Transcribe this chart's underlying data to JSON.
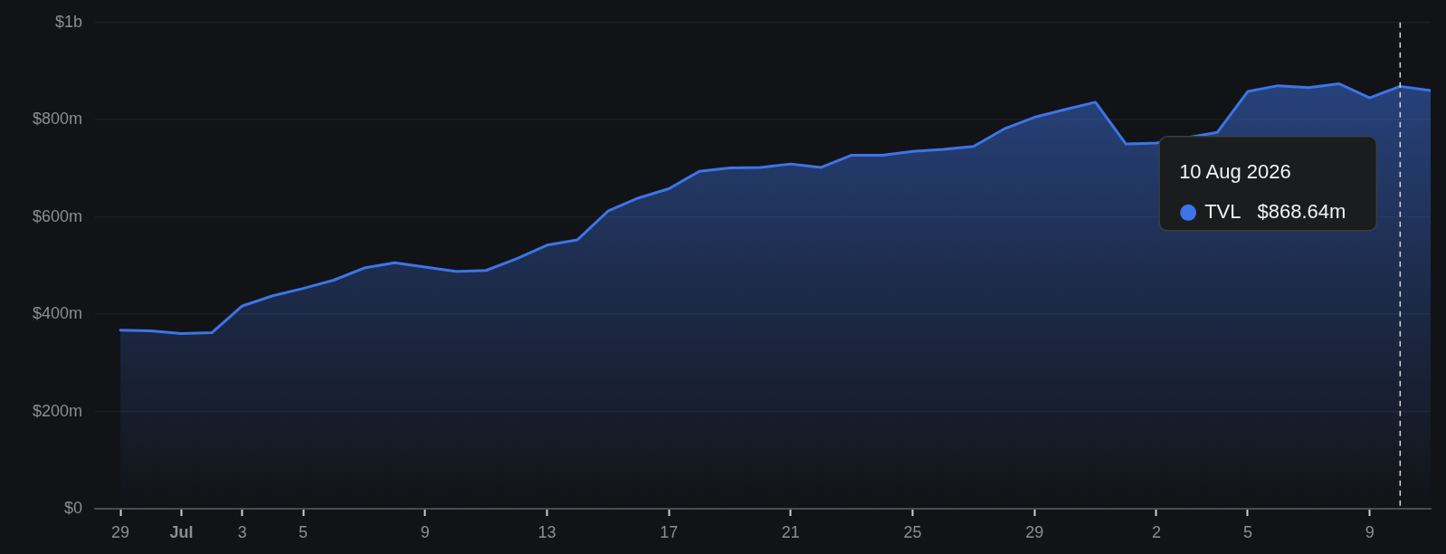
{
  "chart_data": {
    "type": "area",
    "x": [
      "2026-06-29",
      "2026-06-30",
      "2026-07-01",
      "2026-07-02",
      "2026-07-03",
      "2026-07-04",
      "2026-07-05",
      "2026-07-06",
      "2026-07-07",
      "2026-07-08",
      "2026-07-09",
      "2026-07-10",
      "2026-07-11",
      "2026-07-12",
      "2026-07-13",
      "2026-07-14",
      "2026-07-15",
      "2026-07-16",
      "2026-07-17",
      "2026-07-18",
      "2026-07-19",
      "2026-07-20",
      "2026-07-21",
      "2026-07-22",
      "2026-07-23",
      "2026-07-24",
      "2026-07-25",
      "2026-07-26",
      "2026-07-27",
      "2026-07-28",
      "2026-07-29",
      "2026-07-30",
      "2026-07-31",
      "2026-08-01",
      "2026-08-02",
      "2026-08-03",
      "2026-08-04",
      "2026-08-05",
      "2026-08-06",
      "2026-08-07",
      "2026-08-08",
      "2026-08-09",
      "2026-08-10",
      "2026-08-11"
    ],
    "series": [
      {
        "name": "TVL",
        "color": "#3d74e8",
        "values": [
          367000000,
          366000000,
          360000000,
          362000000,
          417000000,
          438000000,
          453000000,
          470000000,
          495000000,
          506000000,
          497000000,
          488000000,
          490000000,
          514000000,
          542000000,
          553000000,
          612000000,
          639000000,
          658000000,
          694000000,
          701000000,
          702000000,
          709000000,
          702000000,
          727000000,
          727000000,
          735000000,
          739000000,
          745000000,
          781000000,
          805000000,
          821000000,
          836000000,
          750000000,
          752000000,
          null,
          774000000,
          858000000,
          870000000,
          866000000,
          874000000,
          845000000,
          868640000,
          860000000
        ]
      }
    ],
    "annotations": [
      "10 Aug 2026",
      "$868.64m"
    ],
    "ref_lines": [
      {
        "axis": "x",
        "value": "2026-08-10",
        "color": "#d8d8d8",
        "line_style": "dashed"
      }
    ],
    "xlim": [
      "2026-06-28T04:00",
      "2026-08-11"
    ],
    "xticks": [
      {
        "value": "2026-06-29",
        "label": "29"
      },
      {
        "value": "2026-07-01",
        "label": "Jul"
      },
      {
        "value": "2026-07-03",
        "label": "3"
      },
      {
        "value": "2026-07-05",
        "label": "5"
      },
      {
        "value": "2026-07-09",
        "label": "9"
      },
      {
        "value": "2026-07-13",
        "label": "13"
      },
      {
        "value": "2026-07-17",
        "label": "17"
      },
      {
        "value": "2026-07-21",
        "label": "21"
      },
      {
        "value": "2026-07-25",
        "label": "25"
      },
      {
        "value": "2026-07-29",
        "label": "29"
      },
      {
        "value": "2026-08-02",
        "label": "2"
      },
      {
        "value": "2026-08-05",
        "label": "5"
      },
      {
        "value": "2026-08-09",
        "label": "9"
      }
    ],
    "ylim": [
      0,
      1000000000
    ],
    "yticks": [
      {
        "value": 0,
        "label": "$0"
      },
      {
        "value": 200000000,
        "label": "$200m"
      },
      {
        "value": 400000000,
        "label": "$400m"
      },
      {
        "value": 600000000,
        "label": "$600m"
      },
      {
        "value": 800000000,
        "label": "$800m"
      },
      {
        "value": 1000000000,
        "label": "$1b"
      }
    ],
    "grid": "y",
    "marker": "none"
  }
}
